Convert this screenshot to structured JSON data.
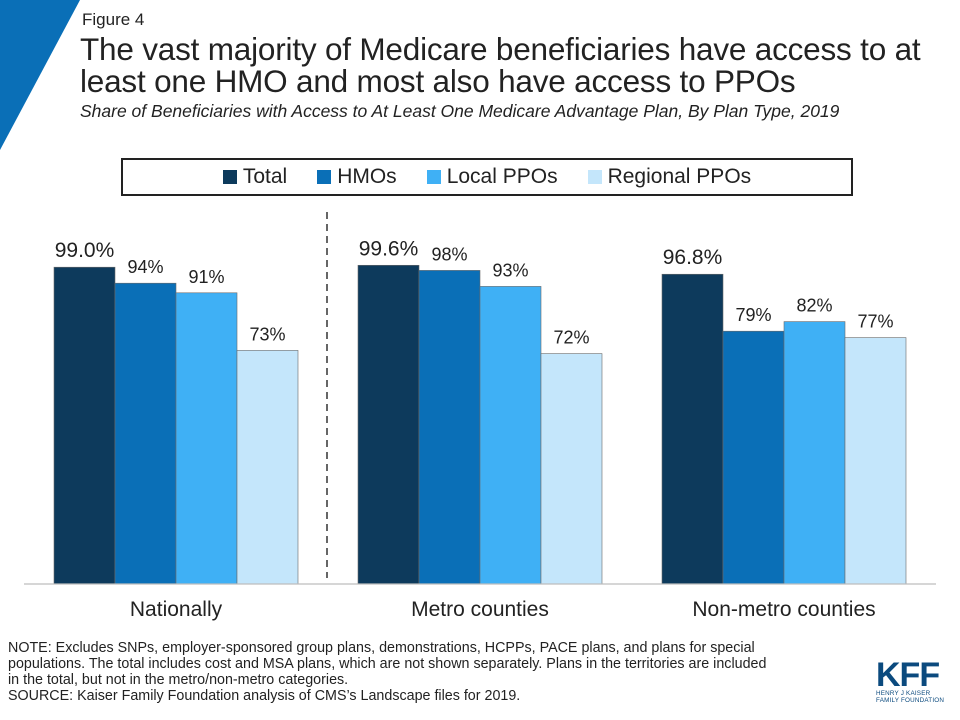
{
  "figure_label": "Figure 4",
  "title": "The vast majority of Medicare beneficiaries have access to at least one HMO and most also have access to PPOs",
  "subtitle": "Share of Beneficiaries with Access to At Least One Medicare Advantage Plan, By Plan Type, 2019",
  "colors": {
    "accent": "#0a6fb7",
    "total": "#0d3a5c",
    "hmos": "#0a6fb7",
    "local_ppos": "#3fb0f5",
    "regional_ppos": "#c4e6fb",
    "text": "#222222"
  },
  "chart_data": {
    "type": "bar",
    "categories": [
      "Nationally",
      "Metro counties",
      "Non-metro counties"
    ],
    "series": [
      {
        "name": "Total",
        "values": [
          99.0,
          99.6,
          96.8
        ],
        "labels": [
          "99.0%",
          "99.6%",
          "96.8%"
        ],
        "color": "#0d3a5c"
      },
      {
        "name": "HMOs",
        "values": [
          94,
          98,
          79
        ],
        "labels": [
          "94%",
          "98%",
          "79%"
        ],
        "color": "#0a6fb7"
      },
      {
        "name": "Local PPOs",
        "values": [
          91,
          93,
          82
        ],
        "labels": [
          "91%",
          "93%",
          "82%"
        ],
        "color": "#3fb0f5"
      },
      {
        "name": "Regional PPOs",
        "values": [
          73,
          72,
          77
        ],
        "labels": [
          "73%",
          "72%",
          "77%"
        ],
        "color": "#c4e6fb"
      }
    ],
    "ylim": [
      0,
      100
    ],
    "grid": false,
    "legend_position": "top",
    "divider_after_category": 0
  },
  "note_lines": [
    "NOTE: Excludes SNPs, employer-sponsored group plans, demonstrations, HCPPs, PACE plans, and plans for special",
    "populations. The total includes cost and MSA plans, which are not shown separately.  Plans in the territories are included",
    "in the total, but not in the metro/non-metro  categories.",
    "SOURCE:  Kaiser Family Foundation analysis of CMS’s Landscape files for 2019."
  ],
  "logo": {
    "mark": "KFF",
    "line1": "HENRY J KAISER",
    "line2": "FAMILY FOUNDATION"
  }
}
